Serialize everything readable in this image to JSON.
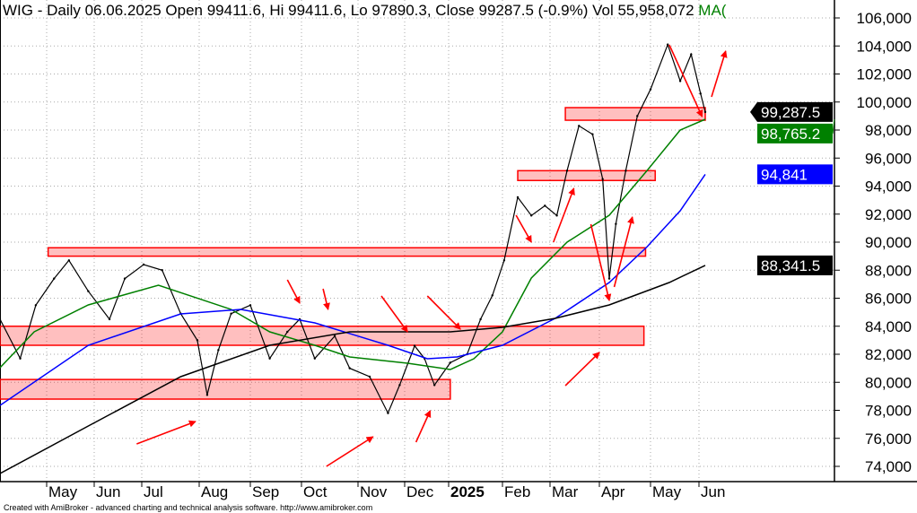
{
  "header": {
    "title": "WIG - Daily 06.06.2025 Open 99411.6, Hi 99411.6, Lo 97890.3, Close 99287.5 (-0.9%) Vol 55,958,072",
    "ma_label": "MA("
  },
  "footer": "Created with AmiBroker - advanced charting and technical analysis software. http://www.amibroker.com",
  "chart_data": {
    "type": "line",
    "ylim": [
      73000,
      107000
    ],
    "grid": true,
    "yticks": [
      "74,000",
      "76,000",
      "78,000",
      "80,000",
      "82,000",
      "84,000",
      "86,000",
      "88,000",
      "90,000",
      "92,000",
      "94,000",
      "96,000",
      "98,000",
      "100,000",
      "102,000",
      "104,000",
      "106,000"
    ],
    "ytick_values": [
      74000,
      76000,
      78000,
      80000,
      82000,
      84000,
      86000,
      88000,
      90000,
      92000,
      94000,
      96000,
      98000,
      100000,
      102000,
      104000,
      106000
    ],
    "xticks": [
      {
        "label": "May",
        "date": "2024-05-02"
      },
      {
        "label": "Jun",
        "date": "2024-06-03"
      },
      {
        "label": "Jul",
        "date": "2024-07-01"
      },
      {
        "label": "Aug",
        "date": "2024-08-01"
      },
      {
        "label": "Sep",
        "date": "2024-09-02"
      },
      {
        "label": "Oct",
        "date": "2024-10-01"
      },
      {
        "label": "Nov",
        "date": "2024-11-04"
      },
      {
        "label": "Dec",
        "date": "2024-1202"
      },
      {
        "label": "2025",
        "date": "2025-01-02",
        "bold": true
      },
      {
        "label": "Feb",
        "date": "2025-02-03"
      },
      {
        "label": "Mar",
        "date": "2025-03-03"
      },
      {
        "label": "Apr",
        "date": "2025-04-01"
      },
      {
        "label": "May",
        "date": "2025-05-02"
      },
      {
        "label": "Jun",
        "date": "2025-06-02"
      }
    ],
    "series": [
      {
        "color": "#000000",
        "x": [
          "2024-04-02",
          "2024-04-15",
          "2024-04-25",
          "2024-05-07",
          "2024-05-17",
          "2024-05-30",
          "2024-06-12",
          "2024-06-21",
          "2024-07-02",
          "2024-07-12",
          "2024-07-22",
          "2024-07-31",
          "2024-08-06",
          "2024-08-13",
          "2024-08-21",
          "2024-09-02",
          "2024-09-13",
          "2024-09-23",
          "2024-09-30",
          "2024-10-09",
          "2024-10-21",
          "2024-10-30",
          "2024-11-11",
          "2024-11-22",
          "2024-11-29",
          "2024-12-09",
          "2024-12-16",
          "2024-12-23",
          "2025-01-03",
          "2025-01-13",
          "2025-01-21",
          "2025-01-28",
          "2025-02-04",
          "2025-02-12",
          "2025-02-20",
          "2025-02-28",
          "2025-03-07",
          "2025-03-13",
          "2025-03-20",
          "2025-03-28",
          "2025-04-03",
          "2025-04-07",
          "2025-04-11",
          "2025-04-17",
          "2025-04-24",
          "2025-05-02",
          "2025-05-13",
          "2025-05-21",
          "2025-05-28",
          "2025-06-03",
          "2025-06-06"
        ],
        "values": [
          84500,
          81700,
          85500,
          87400,
          88700,
          86500,
          84500,
          87400,
          88400,
          88000,
          84900,
          83000,
          79100,
          82300,
          84900,
          85500,
          81700,
          83600,
          84500,
          81700,
          83300,
          81000,
          80400,
          77800,
          79800,
          82600,
          81700,
          79800,
          81400,
          82000,
          84500,
          86200,
          88700,
          93200,
          91900,
          92600,
          91900,
          95100,
          98300,
          97700,
          94500,
          87400,
          91300,
          95100,
          99000,
          100900,
          104100,
          101500,
          103400,
          100600,
          99287.5
        ]
      },
      {
        "color": "#008000",
        "x": [
          "2024-04-02",
          "2024-04-24",
          "2024-05-30",
          "2024-07-10",
          "2024-08-21",
          "2024-09-13",
          "2024-10-09",
          "2024-10-30",
          "2024-12-04",
          "2025-01-03",
          "2025-01-17",
          "2025-02-03",
          "2025-02-20",
          "2025-03-13",
          "2025-04-07",
          "2025-04-30",
          "2025-05-21",
          "2025-06-06"
        ],
        "values": [
          81040,
          83600,
          85520,
          86928,
          85200,
          83600,
          82640,
          81808,
          81360,
          80912,
          81680,
          83600,
          87440,
          90000,
          91920,
          95120,
          98000,
          98765.2
        ]
      },
      {
        "color": "#0000ff",
        "x": [
          "2024-04-02",
          "2024-05-30",
          "2024-07-22",
          "2024-08-27",
          "2024-10-09",
          "2024-11-22",
          "2024-12-18",
          "2025-01-07",
          "2025-02-03",
          "2025-03-06",
          "2025-04-07",
          "2025-04-30",
          "2025-05-21",
          "2025-06-06"
        ],
        "values": [
          78352,
          82640,
          84880,
          85200,
          84240,
          82640,
          81680,
          81808,
          82640,
          84560,
          87120,
          89680,
          92240,
          94841
        ]
      },
      {
        "color": "#000000",
        "x": [
          "2024-04-02",
          "2024-05-30",
          "2024-07-22",
          "2024-09-13",
          "2024-10-30",
          "2025-01-03",
          "2025-02-03",
          "2025-03-06",
          "2025-04-07",
          "2025-05-14",
          "2025-06-06"
        ],
        "values": [
          73488,
          76880,
          80400,
          82640,
          83600,
          83600,
          83920,
          84560,
          85520,
          87120,
          88341.5
        ]
      }
    ],
    "price_labels": [
      {
        "text": "99,287.5",
        "value": 99287.5,
        "bg": "#000000",
        "arrow": true
      },
      {
        "text": "98,765.2",
        "value": 98765.2,
        "bg": "#008000"
      },
      {
        "text": "94,841",
        "value": 94841,
        "bg": "#0000ff"
      },
      {
        "text": "88,341.5",
        "value": 88341.5,
        "bg": "#000000"
      }
    ],
    "zones": [
      {
        "from": "2024-04-02",
        "to": "2025-01-03",
        "low": 78800,
        "high": 80200
      },
      {
        "from": "2024-04-02",
        "to": "2025-04-28",
        "low": 82640,
        "high": 84000
      },
      {
        "from": "2024-05-03",
        "to": "2025-04-29",
        "low": 89000,
        "high": 89600
      },
      {
        "from": "2025-02-12",
        "to": "2025-05-05",
        "low": 94400,
        "high": 95100
      },
      {
        "from": "2025-03-12",
        "to": "2025-06-06",
        "low": 98700,
        "high": 99600
      }
    ],
    "zone_color": "#ff0000",
    "arrow_color": "#ff0000",
    "arrows": [
      {
        "from": [
          "2024-06-28",
          75600
        ],
        "to": [
          "2024-07-30",
          77200
        ]
      },
      {
        "from": [
          "2024-10-16",
          74000
        ],
        "to": [
          "2024-11-13",
          76112
        ]
      },
      {
        "from": [
          "2024-12-10",
          75728
        ],
        "to": [
          "2024-12-20",
          77968
        ]
      },
      {
        "from": [
          "2025-03-12",
          79760
        ],
        "to": [
          "2025-04-01",
          82128
        ]
      },
      {
        "from": [
          "2024-09-23",
          87312
        ],
        "to": [
          "2024-09-30",
          85648
        ]
      },
      {
        "from": [
          "2024-10-14",
          86672
        ],
        "to": [
          "2024-10-17",
          85200
        ]
      },
      {
        "from": [
          "2024-11-18",
          86160
        ],
        "to": [
          "2024-12-04",
          83600
        ]
      },
      {
        "from": [
          "2024-12-18",
          86160
        ],
        "to": [
          "2025-01-09",
          83792
        ]
      },
      {
        "from": [
          "2025-02-11",
          91920
        ],
        "to": [
          "2025-02-20",
          90000
        ]
      },
      {
        "from": [
          "2025-03-05",
          90000
        ],
        "to": [
          "2025-03-17",
          93840
        ]
      },
      {
        "from": [
          "2025-03-27",
          91280
        ],
        "to": [
          "2025-04-07",
          85840
        ]
      },
      {
        "from": [
          "2025-04-10",
          86800
        ],
        "to": [
          "2025-04-21",
          91792
        ]
      },
      {
        "from": [
          "2025-05-14",
          104080
        ],
        "to": [
          "2025-06-04",
          98960
        ]
      },
      {
        "from": [
          "2025-06-10",
          100368
        ],
        "to": [
          "2025-06-19",
          103632
        ]
      }
    ]
  }
}
